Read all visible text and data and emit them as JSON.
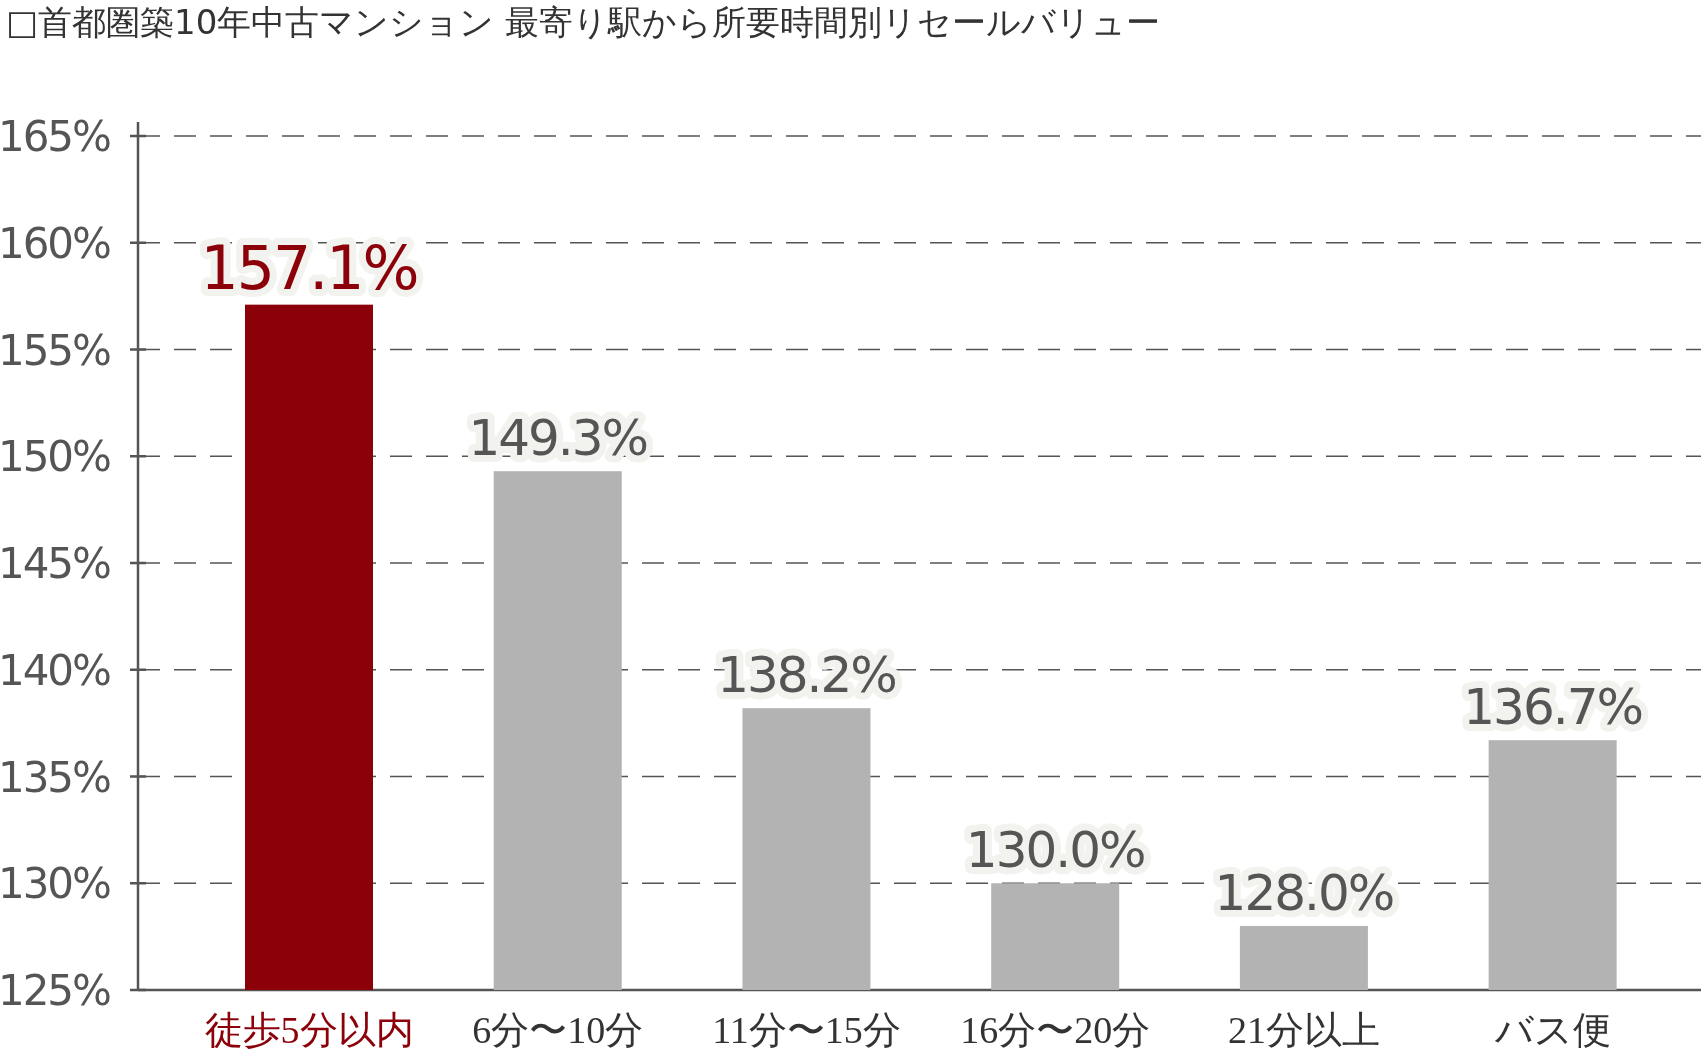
{
  "chart_data": {
    "type": "bar",
    "title": "□首都圏築10年中古マンション 最寄り駅から所要時間別リセールバリュー",
    "categories": [
      "徒歩5分以内",
      "6分〜10分",
      "11分〜15分",
      "16分〜20分",
      "21分以上",
      "バス便"
    ],
    "values": [
      157.1,
      149.3,
      138.2,
      130.0,
      128.0,
      136.7
    ],
    "colors": [
      "#8b0009",
      "#b3b3b3",
      "#b3b3b3",
      "#b3b3b3",
      "#b3b3b3",
      "#b3b3b3"
    ],
    "value_labels": [
      "157.1%",
      "149.3%",
      "138.2%",
      "130.0%",
      "128.0%",
      "136.7%"
    ],
    "ylim": [
      125,
      165
    ],
    "yticks": [
      {
        "value": 125,
        "label": "125%"
      },
      {
        "value": 130,
        "label": "130%"
      },
      {
        "value": 135,
        "label": "135%"
      },
      {
        "value": 140,
        "label": "140%"
      },
      {
        "value": 145,
        "label": "145%"
      },
      {
        "value": 150,
        "label": "150%"
      },
      {
        "value": 155,
        "label": "155%"
      },
      {
        "value": 160,
        "label": "160%"
      },
      {
        "value": 165,
        "label": "165%"
      }
    ],
    "grid": "y"
  }
}
